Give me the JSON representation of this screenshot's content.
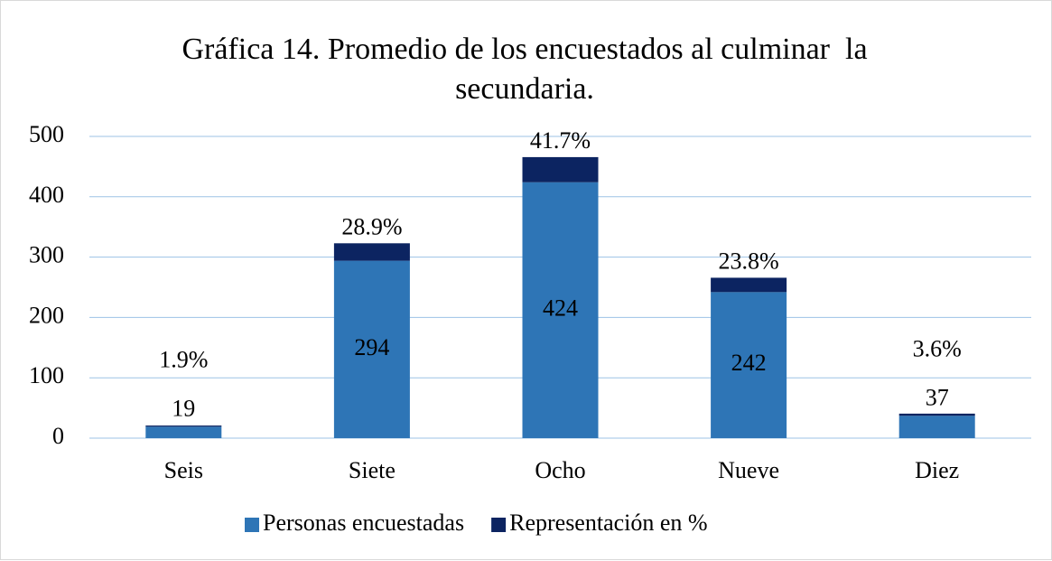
{
  "chart_data": {
    "type": "bar",
    "stacked": true,
    "title": "Gráfica 14. Promedio de los encuestados al culminar  la secundaria.",
    "categories": [
      "Seis",
      "Siete",
      "Ocho",
      "Nueve",
      "Diez"
    ],
    "series": [
      {
        "name": "Personas encuestadas",
        "color": "#2e75b6",
        "values": [
          19,
          294,
          424,
          242,
          37
        ]
      },
      {
        "name": "Representación en %",
        "color": "#0c2461",
        "values": [
          1.9,
          28.9,
          41.7,
          23.8,
          3.6
        ],
        "value_labels": [
          "1.9%",
          "28.9%",
          "41.7%",
          "23.8%",
          "3.6%"
        ]
      }
    ],
    "ylim": [
      0,
      500
    ],
    "yticks": [
      0,
      100,
      200,
      300,
      400,
      500
    ],
    "grid": true,
    "legend": "bottom"
  }
}
